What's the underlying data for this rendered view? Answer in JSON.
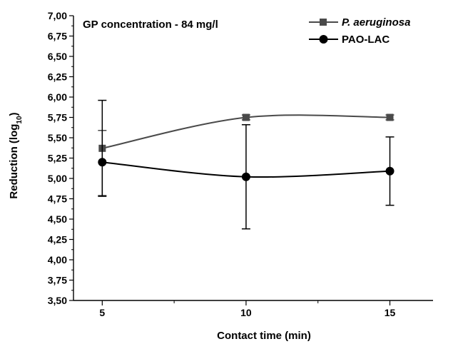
{
  "chart_data": {
    "type": "line",
    "annotation": "GP concentration - 84 mg/l",
    "xlabel": "Contact time (min)",
    "ylabel_main": "Reduction (log",
    "ylabel_sub": "10",
    "ylabel_close": ")",
    "x": [
      5,
      10,
      15
    ],
    "x_tick_labels": [
      "5",
      "10",
      "15"
    ],
    "xlim": [
      4,
      16.5
    ],
    "ylim": [
      3.5,
      7.0
    ],
    "y_tick_values": [
      3.5,
      3.75,
      4.0,
      4.25,
      4.5,
      4.75,
      5.0,
      5.25,
      5.5,
      5.75,
      6.0,
      6.25,
      6.5,
      6.75,
      7.0
    ],
    "y_tick_labels": [
      "3,50",
      "3,75",
      "4,00",
      "4,25",
      "4,50",
      "4,75",
      "5,00",
      "5,25",
      "5,50",
      "5,75",
      "6,00",
      "6,25",
      "6,50",
      "6,75",
      "7,00"
    ],
    "grid": false,
    "legend_position": "top-right",
    "series": [
      {
        "name": "P. aeruginosa",
        "italic": true,
        "marker": "square",
        "color": "#4a4a4a",
        "values": [
          5.37,
          5.75,
          5.75
        ],
        "err_low": [
          4.79,
          5.72,
          5.72
        ],
        "err_high": [
          5.59,
          5.78,
          5.78
        ]
      },
      {
        "name": "PAO-LAC",
        "italic": false,
        "marker": "circle",
        "color": "#000000",
        "values": [
          5.2,
          5.02,
          5.09
        ],
        "err_low": [
          4.78,
          4.38,
          4.67
        ],
        "err_high": [
          5.96,
          5.66,
          5.51
        ]
      }
    ]
  }
}
